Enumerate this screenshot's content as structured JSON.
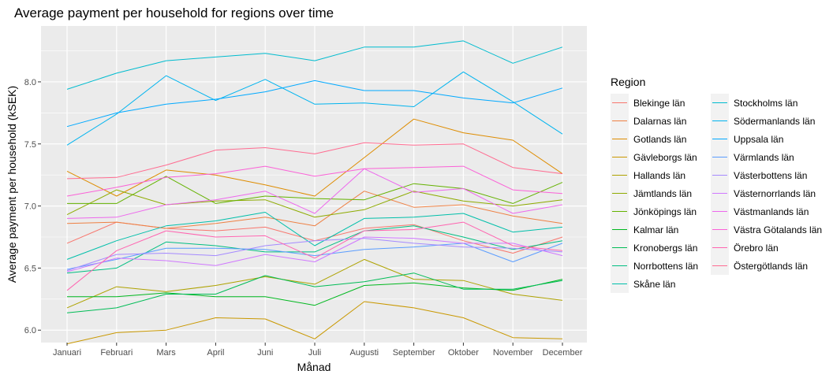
{
  "chart_data": {
    "type": "line",
    "title": "Average payment per household for regions over time",
    "xlabel": "Månad",
    "ylabel": "Average payment per household (kSEK)",
    "ylim": [
      5.9,
      8.45
    ],
    "y_ticks": [
      6.0,
      6.5,
      7.0,
      7.5,
      8.0
    ],
    "y_tick_labels": [
      "6.0",
      "6.5",
      "7.0",
      "7.5",
      "8.0"
    ],
    "grid": true,
    "legend_title": "Region",
    "legend_position": "right",
    "categories": [
      "Januari",
      "Februari",
      "Mars",
      "April",
      "Juni",
      "Juli",
      "Augusti",
      "September",
      "Oktober",
      "November",
      "December"
    ],
    "series": [
      {
        "name": "Blekinge län",
        "color": "#F8766D",
        "values": [
          6.7,
          6.87,
          6.82,
          6.8,
          6.83,
          6.72,
          6.82,
          6.85,
          6.72,
          6.62,
          6.75
        ]
      },
      {
        "name": "Dalarnas län",
        "color": "#EE8043",
        "values": [
          6.86,
          6.87,
          6.82,
          6.86,
          6.91,
          6.84,
          7.12,
          6.99,
          7.01,
          6.92,
          6.86
        ]
      },
      {
        "name": "Gotlands län",
        "color": "#DE8C00",
        "values": [
          7.28,
          7.08,
          7.29,
          7.25,
          7.17,
          7.08,
          7.39,
          7.7,
          7.59,
          7.53,
          7.26
        ]
      },
      {
        "name": "Gävleborgs län",
        "color": "#C99800",
        "values": [
          5.89,
          5.98,
          6.0,
          6.1,
          6.09,
          5.93,
          6.23,
          6.18,
          6.1,
          5.94,
          5.93
        ]
      },
      {
        "name": "Hallands län",
        "color": "#AEA200",
        "values": [
          6.18,
          6.35,
          6.31,
          6.36,
          6.43,
          6.37,
          6.57,
          6.41,
          6.4,
          6.29,
          6.24
        ]
      },
      {
        "name": "Jämtlands län",
        "color": "#8EAB00",
        "values": [
          6.93,
          7.13,
          7.01,
          7.04,
          7.05,
          6.91,
          6.97,
          7.12,
          7.04,
          7.0,
          7.05
        ]
      },
      {
        "name": "Jönköpings län",
        "color": "#64B200",
        "values": [
          7.02,
          7.02,
          7.24,
          7.02,
          7.08,
          7.06,
          7.05,
          7.18,
          7.14,
          7.02,
          7.19
        ]
      },
      {
        "name": "Kalmar län",
        "color": "#00B81F",
        "values": [
          6.27,
          6.27,
          6.3,
          6.27,
          6.27,
          6.2,
          6.36,
          6.38,
          6.34,
          6.32,
          6.41
        ]
      },
      {
        "name": "Kronobergs län",
        "color": "#00BC56",
        "values": [
          6.14,
          6.18,
          6.29,
          6.29,
          6.44,
          6.35,
          6.39,
          6.46,
          6.33,
          6.33,
          6.4
        ]
      },
      {
        "name": "Norrbottens län",
        "color": "#00BE82",
        "values": [
          6.46,
          6.5,
          6.71,
          6.68,
          6.63,
          6.63,
          6.8,
          6.84,
          6.75,
          6.65,
          6.72
        ]
      },
      {
        "name": "Skåne län",
        "color": "#00BFAA",
        "values": [
          6.57,
          6.72,
          6.84,
          6.88,
          6.95,
          6.68,
          6.9,
          6.91,
          6.94,
          6.79,
          6.83
        ]
      },
      {
        "name": "Stockholms län",
        "color": "#00BCCF",
        "values": [
          7.94,
          8.07,
          8.17,
          8.2,
          8.23,
          8.17,
          8.28,
          8.28,
          8.33,
          8.15,
          8.28
        ]
      },
      {
        "name": "Södermanlands län",
        "color": "#00B4EF",
        "values": [
          7.49,
          7.74,
          8.05,
          7.85,
          8.02,
          7.82,
          7.83,
          7.8,
          8.08,
          7.84,
          7.58
        ]
      },
      {
        "name": "Uppsala län",
        "color": "#00A9FF",
        "values": [
          7.64,
          7.75,
          7.82,
          7.86,
          7.92,
          8.01,
          7.93,
          7.93,
          7.87,
          7.83,
          7.95
        ]
      },
      {
        "name": "Värmlands län",
        "color": "#5B9DFF",
        "values": [
          6.49,
          6.57,
          6.66,
          6.66,
          6.65,
          6.6,
          6.65,
          6.67,
          6.7,
          6.55,
          6.7
        ]
      },
      {
        "name": "Västerbottens län",
        "color": "#A58AFF",
        "values": [
          6.48,
          6.61,
          6.62,
          6.6,
          6.68,
          6.72,
          6.74,
          6.7,
          6.67,
          6.66,
          6.63
        ]
      },
      {
        "name": "Västernorrlands län",
        "color": "#D078FF",
        "values": [
          6.47,
          6.58,
          6.56,
          6.52,
          6.61,
          6.55,
          6.75,
          6.74,
          6.7,
          6.7,
          6.6
        ]
      },
      {
        "name": "Västmanlands län",
        "color": "#ED68ED",
        "values": [
          6.9,
          6.91,
          7.01,
          7.05,
          7.12,
          6.94,
          7.3,
          7.11,
          7.14,
          6.94,
          7.01
        ]
      },
      {
        "name": "Västra Götalands län",
        "color": "#FB61D7",
        "values": [
          7.08,
          7.15,
          7.23,
          7.26,
          7.32,
          7.24,
          7.3,
          7.31,
          7.32,
          7.13,
          7.1
        ]
      },
      {
        "name": "Örebro län",
        "color": "#FF64B0",
        "values": [
          6.32,
          6.64,
          6.8,
          6.75,
          6.76,
          6.58,
          6.8,
          6.81,
          6.87,
          6.68,
          6.64
        ]
      },
      {
        "name": "Östergötlands län",
        "color": "#FF6C91",
        "values": [
          7.22,
          7.23,
          7.33,
          7.45,
          7.47,
          7.42,
          7.51,
          7.49,
          7.5,
          7.31,
          7.26
        ]
      }
    ]
  }
}
